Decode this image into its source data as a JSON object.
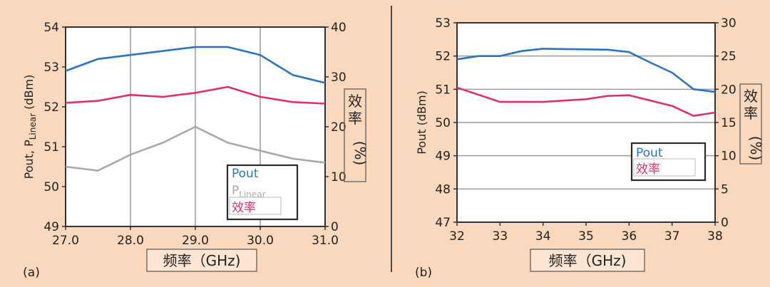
{
  "colors": {
    "background": "#fad8bd",
    "plot_bg": "#ffffff",
    "pout": "#2a76be",
    "plinear": "#a9a9a9",
    "efficiency": "#e0306c",
    "axis": "#333333",
    "grid": "#9a9a9a",
    "divider": "#4a4a4a"
  },
  "chart_data": [
    {
      "id": "a",
      "type": "line",
      "panel_label": "(a)",
      "xlabel": "频率（GHz)",
      "ylabel_main": "Pout, P",
      "ylabel_sub": "Linear",
      "ylabel_suffix": " (dBm)",
      "y2label": [
        "效率",
        "(%)"
      ],
      "xlim": [
        27.0,
        31.0
      ],
      "ylim": [
        49,
        54
      ],
      "y2lim": [
        0,
        40
      ],
      "x_ticks": [
        "27.0",
        "28.0",
        "29.0",
        "30.0",
        "31.0"
      ],
      "y_ticks": [
        "49",
        "50",
        "51",
        "52",
        "53",
        "54"
      ],
      "y2_ticks": [
        "0",
        "10",
        "20",
        "30",
        "40"
      ],
      "grid": "vertical",
      "legend_position": "bottom-right",
      "legend": [
        {
          "main": "Pout",
          "sub": ""
        },
        {
          "main": "P",
          "sub": "Linear"
        },
        {
          "main": "效率",
          "sub": ""
        }
      ],
      "series": [
        {
          "name": "Pout",
          "axis": "left",
          "x": [
            27.0,
            27.5,
            28.0,
            28.5,
            29.0,
            29.5,
            30.0,
            30.5,
            31.0
          ],
          "values": [
            52.9,
            53.2,
            53.3,
            53.4,
            53.5,
            53.5,
            53.3,
            52.8,
            52.6
          ]
        },
        {
          "name": "PLinear",
          "axis": "left",
          "x": [
            27.0,
            27.5,
            28.0,
            28.5,
            29.0,
            29.5,
            30.0,
            30.5,
            31.0
          ],
          "values": [
            50.5,
            50.4,
            50.8,
            51.1,
            51.5,
            51.1,
            50.9,
            50.7,
            50.6
          ]
        },
        {
          "name": "效率",
          "axis": "left",
          "x": [
            27.0,
            27.5,
            28.0,
            28.5,
            29.0,
            29.5,
            30.0,
            30.5,
            31.0
          ],
          "values": [
            52.1,
            52.15,
            52.3,
            52.25,
            52.35,
            52.5,
            52.25,
            52.12,
            52.08
          ]
        }
      ]
    },
    {
      "id": "b",
      "type": "line",
      "panel_label": "(b)",
      "xlabel": "频率（GHz)",
      "ylabel_main": "Pout (dBm)",
      "ylabel_sub": "",
      "ylabel_suffix": "",
      "y2label": [
        "效率",
        "(%)"
      ],
      "xlim": [
        32,
        38
      ],
      "ylim": [
        47,
        53
      ],
      "y2lim": [
        0,
        30
      ],
      "x_ticks": [
        "32",
        "33",
        "34",
        "35",
        "36",
        "37",
        "38"
      ],
      "y_ticks": [
        "47",
        "48",
        "49",
        "50",
        "51",
        "52",
        "53"
      ],
      "y2_ticks": [
        "0",
        "5",
        "10",
        "15",
        "20",
        "25",
        "30"
      ],
      "grid": "horizontal",
      "legend_position": "center-right",
      "legend": [
        {
          "main": "Pout",
          "sub": ""
        },
        {
          "main": "效率",
          "sub": ""
        }
      ],
      "series": [
        {
          "name": "Pout",
          "axis": "left",
          "x": [
            32,
            32.5,
            33,
            33.5,
            34,
            34.5,
            35,
            35.5,
            36,
            36.5,
            37,
            37.5,
            38
          ],
          "values": [
            51.9,
            52.0,
            52.0,
            52.15,
            52.22,
            52.21,
            52.2,
            52.19,
            52.12,
            51.8,
            51.5,
            51.0,
            50.92
          ]
        },
        {
          "name": "效率",
          "axis": "left",
          "x": [
            32,
            33,
            34,
            35,
            35.5,
            36,
            37,
            37.5,
            38
          ],
          "values": [
            51.05,
            50.62,
            50.62,
            50.7,
            50.8,
            50.82,
            50.5,
            50.2,
            50.3
          ]
        }
      ]
    }
  ]
}
